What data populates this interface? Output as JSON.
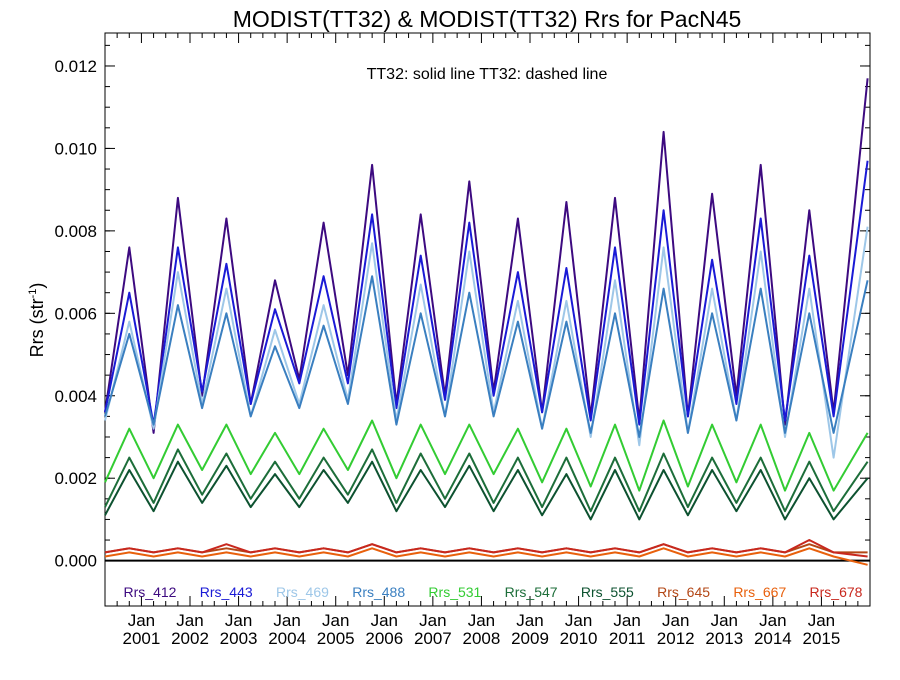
{
  "chart_data": {
    "type": "line",
    "title": "MODIST(TT32) & MODIST(TT32)  Rrs for PacN45",
    "ylabel": "Rrs (str",
    "ylabel_sup": "-1",
    "ylabel_close": ")",
    "annotation": "TT32: solid line   TT32: dashed line",
    "ylim": [
      -0.0011,
      0.0128
    ],
    "xlim": [
      2000.25,
      2016.0
    ],
    "yticks": [
      0.0,
      0.002,
      0.004,
      0.006,
      0.008,
      0.01,
      0.012
    ],
    "ytick_labels": [
      "0.000",
      "0.002",
      "0.004",
      "0.006",
      "0.008",
      "0.010",
      "0.012"
    ],
    "xtick_top": "Jan",
    "xticks": [
      2001,
      2002,
      2003,
      2004,
      2005,
      2006,
      2007,
      2008,
      2009,
      2010,
      2011,
      2012,
      2013,
      2014,
      2015
    ],
    "xtick_labels": [
      "2001",
      "2002",
      "2003",
      "2004",
      "2005",
      "2006",
      "2007",
      "2008",
      "2009",
      "2010",
      "2011",
      "2012",
      "2013",
      "2014",
      "2015"
    ],
    "zero_line": true,
    "legend_placement": "bottom inside",
    "series": [
      {
        "name": "Rrs_412",
        "color": "#3d0a80",
        "values": [
          0.0036,
          0.0076,
          0.0031,
          0.0088,
          0.004,
          0.0083,
          0.0038,
          0.0068,
          0.0044,
          0.0082,
          0.0045,
          0.0096,
          0.0038,
          0.0084,
          0.004,
          0.0092,
          0.0041,
          0.0083,
          0.0036,
          0.0087,
          0.0035,
          0.0088,
          0.0034,
          0.0104,
          0.0035,
          0.0089,
          0.004,
          0.0096,
          0.0033,
          0.0085,
          0.0036,
          0.0117
        ]
      },
      {
        "name": "Rrs_443",
        "color": "#1a1ad6",
        "values": [
          0.0036,
          0.0065,
          0.0033,
          0.0076,
          0.0041,
          0.0072,
          0.0038,
          0.0061,
          0.0043,
          0.0069,
          0.0043,
          0.0084,
          0.0037,
          0.0074,
          0.0039,
          0.0082,
          0.004,
          0.007,
          0.0036,
          0.0071,
          0.0034,
          0.0076,
          0.0033,
          0.0085,
          0.0035,
          0.0073,
          0.0038,
          0.0083,
          0.0034,
          0.0074,
          0.0035,
          0.0097
        ]
      },
      {
        "name": "Rrs_469",
        "color": "#9ec7e8",
        "values": [
          0.0034,
          0.0058,
          0.0032,
          0.007,
          0.0038,
          0.0066,
          0.0035,
          0.0056,
          0.0038,
          0.0062,
          0.0039,
          0.0077,
          0.0034,
          0.0067,
          0.0035,
          0.0075,
          0.0036,
          0.0063,
          0.0032,
          0.0063,
          0.003,
          0.0068,
          0.0028,
          0.0076,
          0.0031,
          0.0066,
          0.0034,
          0.0075,
          0.003,
          0.0066,
          0.0025,
          0.0081
        ]
      },
      {
        "name": "Rrs_488",
        "color": "#3a7fc0",
        "values": [
          0.0035,
          0.0055,
          0.0033,
          0.0062,
          0.0037,
          0.006,
          0.0035,
          0.0052,
          0.0037,
          0.0057,
          0.0038,
          0.0069,
          0.0033,
          0.006,
          0.0035,
          0.0065,
          0.0035,
          0.0058,
          0.0032,
          0.0058,
          0.0031,
          0.006,
          0.003,
          0.0066,
          0.0031,
          0.006,
          0.0034,
          0.0066,
          0.0031,
          0.006,
          0.0031,
          0.0068
        ]
      },
      {
        "name": "Rrs_531",
        "color": "#33cc33",
        "values": [
          0.0019,
          0.0032,
          0.002,
          0.0033,
          0.0022,
          0.0033,
          0.0021,
          0.0031,
          0.0021,
          0.0032,
          0.0022,
          0.0034,
          0.002,
          0.0033,
          0.0021,
          0.0033,
          0.0021,
          0.0032,
          0.0019,
          0.0032,
          0.0018,
          0.0033,
          0.0017,
          0.0034,
          0.0018,
          0.0033,
          0.0019,
          0.0033,
          0.0017,
          0.0031,
          0.0017,
          0.0031
        ]
      },
      {
        "name": "Rrs_547",
        "color": "#1d6e3a",
        "values": [
          0.0013,
          0.0025,
          0.0014,
          0.0027,
          0.0016,
          0.0026,
          0.0015,
          0.0024,
          0.0015,
          0.0025,
          0.0016,
          0.0027,
          0.0014,
          0.0026,
          0.0015,
          0.0026,
          0.0014,
          0.0025,
          0.0013,
          0.0025,
          0.0012,
          0.0025,
          0.0012,
          0.0026,
          0.0013,
          0.0025,
          0.0014,
          0.0025,
          0.0012,
          0.0024,
          0.0012,
          0.0024
        ]
      },
      {
        "name": "Rrs_555",
        "color": "#0d5230",
        "values": [
          0.0011,
          0.0022,
          0.0012,
          0.0024,
          0.0014,
          0.0023,
          0.0013,
          0.0021,
          0.0013,
          0.0022,
          0.0014,
          0.0024,
          0.0012,
          0.0022,
          0.0013,
          0.0023,
          0.0012,
          0.0022,
          0.0011,
          0.0021,
          0.001,
          0.0022,
          0.001,
          0.0022,
          0.0011,
          0.0022,
          0.0012,
          0.0022,
          0.001,
          0.002,
          0.001,
          0.002
        ]
      },
      {
        "name": "Rrs_645",
        "color": "#b34716",
        "values": [
          0.0002,
          0.0003,
          0.0002,
          0.0003,
          0.0002,
          0.0003,
          0.0002,
          0.0003,
          0.0002,
          0.0003,
          0.0002,
          0.0004,
          0.0002,
          0.0003,
          0.0002,
          0.0003,
          0.0002,
          0.0003,
          0.0002,
          0.0003,
          0.0002,
          0.0003,
          0.0002,
          0.0004,
          0.0002,
          0.0003,
          0.0002,
          0.0003,
          0.0002,
          0.0004,
          0.0002,
          0.0002
        ]
      },
      {
        "name": "Rrs_667",
        "color": "#e8600c",
        "values": [
          0.0001,
          0.0002,
          0.0001,
          0.0002,
          0.0001,
          0.0002,
          0.0001,
          0.0002,
          0.0001,
          0.0002,
          0.0001,
          0.0003,
          0.0001,
          0.0002,
          0.0001,
          0.0002,
          0.0001,
          0.0002,
          0.0001,
          0.0002,
          0.0001,
          0.0002,
          0.0001,
          0.0003,
          0.0001,
          0.0002,
          0.0001,
          0.0002,
          0.0001,
          0.0003,
          0.0001,
          -0.0001
        ]
      },
      {
        "name": "Rrs_678",
        "color": "#c8281e",
        "values": [
          0.0002,
          0.0003,
          0.0002,
          0.0003,
          0.0002,
          0.0004,
          0.0002,
          0.0003,
          0.0002,
          0.0003,
          0.0002,
          0.0004,
          0.0002,
          0.0003,
          0.0002,
          0.0003,
          0.0002,
          0.0003,
          0.0002,
          0.0003,
          0.0002,
          0.0003,
          0.0002,
          0.0004,
          0.0002,
          0.0003,
          0.0002,
          0.0003,
          0.0002,
          0.0005,
          0.0002,
          0.0001
        ]
      }
    ],
    "x": [
      2000.25,
      2000.75,
      2001.25,
      2001.75,
      2002.25,
      2002.75,
      2003.25,
      2003.75,
      2004.25,
      2004.75,
      2005.25,
      2005.75,
      2006.25,
      2006.75,
      2007.25,
      2007.75,
      2008.25,
      2008.75,
      2009.25,
      2009.75,
      2010.25,
      2010.75,
      2011.25,
      2011.75,
      2012.25,
      2012.75,
      2013.25,
      2013.75,
      2014.25,
      2014.75,
      2015.25,
      2015.95
    ]
  }
}
